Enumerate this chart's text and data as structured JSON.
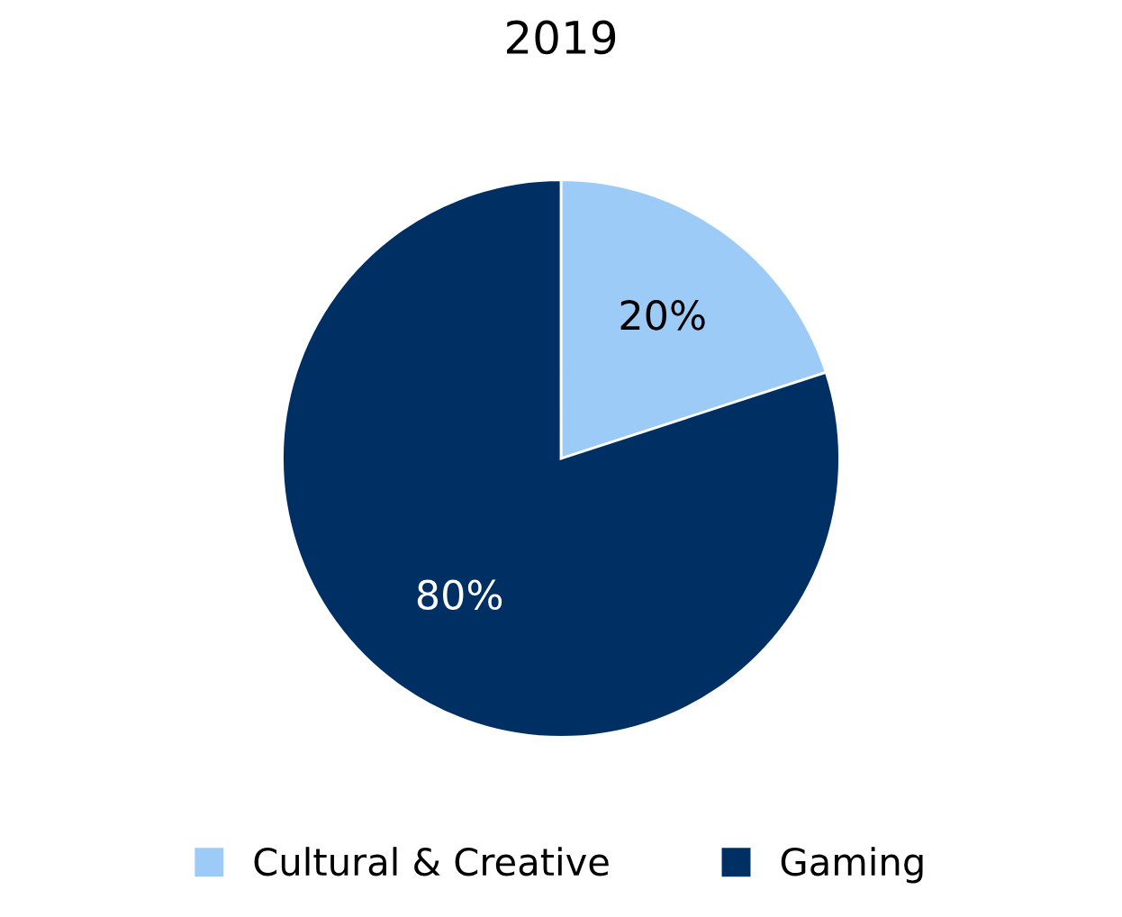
{
  "chart_data": {
    "type": "pie",
    "title": "2019",
    "categories": [
      "Cultural & Creative",
      "Gaming"
    ],
    "values": [
      20,
      80
    ],
    "colors": [
      "#9dcbf7",
      "#003063"
    ],
    "value_labels": [
      "20%",
      "80%"
    ],
    "legend": "bottom"
  }
}
